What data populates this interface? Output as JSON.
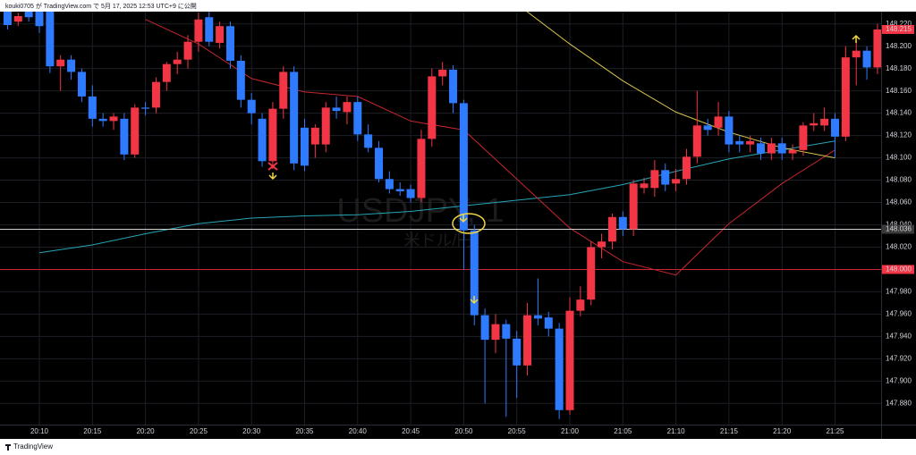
{
  "header": "kouki0705 が TradingView.com で 5月 17, 2025 12:53 UTC+9 に公開",
  "footer": "TradingView",
  "chart_data": {
    "type": "candlestick",
    "watermark": {
      "symbol": "USDJPY, 1",
      "name": "米ドル/円"
    },
    "up_color": "#f23645",
    "down_color": "#2f7bff",
    "grid": true,
    "ylim": [
      147.861,
      148.231
    ],
    "yticks": [
      {
        "value": 147.88,
        "label": "147.880"
      },
      {
        "value": 147.9,
        "label": "147.900"
      },
      {
        "value": 147.92,
        "label": "147.920"
      },
      {
        "value": 147.94,
        "label": "147.940"
      },
      {
        "value": 147.96,
        "label": "147.960"
      },
      {
        "value": 147.98,
        "label": "147.980"
      },
      {
        "value": 148.0,
        "label": "148.000"
      },
      {
        "value": 148.02,
        "label": "148.020"
      },
      {
        "value": 148.04,
        "label": "148.040"
      },
      {
        "value": 148.06,
        "label": "148.060"
      },
      {
        "value": 148.08,
        "label": "148.080"
      },
      {
        "value": 148.1,
        "label": "148.100"
      },
      {
        "value": 148.12,
        "label": "148.120"
      },
      {
        "value": 148.14,
        "label": "148.140"
      },
      {
        "value": 148.16,
        "label": "148.160"
      },
      {
        "value": 148.18,
        "label": "148.180"
      },
      {
        "value": 148.2,
        "label": "148.200"
      },
      {
        "value": 148.22,
        "label": "148.220"
      }
    ],
    "categories": [
      null,
      null,
      null,
      "20:10",
      null,
      null,
      null,
      null,
      "20:15",
      null,
      null,
      null,
      null,
      "20:20",
      null,
      null,
      null,
      null,
      "20:25",
      null,
      null,
      null,
      null,
      "20:30",
      null,
      null,
      null,
      null,
      "20:35",
      null,
      null,
      null,
      null,
      "20:40",
      null,
      null,
      null,
      null,
      "20:45",
      null,
      null,
      null,
      null,
      "20:50",
      null,
      null,
      null,
      null,
      "20:55",
      null,
      null,
      null,
      null,
      "21:00",
      null,
      null,
      null,
      null,
      "21:05",
      null,
      null,
      null,
      null,
      "21:10",
      null,
      null,
      null,
      null,
      "21:15",
      null,
      null,
      null,
      null,
      "21:20",
      null,
      null,
      null,
      null,
      "21:25",
      null,
      null,
      null,
      null
    ],
    "open": [
      148.24,
      148.222,
      148.24,
      148.238,
      148.234,
      148.182,
      148.188,
      148.177,
      148.155,
      148.135,
      148.133,
      148.135,
      148.103,
      148.145,
      148.145,
      148.168,
      148.184,
      148.188,
      148.204,
      148.226,
      148.203,
      148.218,
      148.187,
      148.152,
      148.135,
      148.097,
      148.144,
      148.177,
      148.127,
      148.112,
      148.112,
      148.145,
      148.141,
      148.15,
      148.121,
      148.109,
      148.081,
      148.072,
      148.072,
      148.064,
      148.117,
      148.173,
      148.179,
      148.149,
      148.035,
      147.959,
      147.937,
      147.951,
      147.938,
      147.914,
      147.959,
      147.957,
      147.947,
      147.874,
      147.963,
      147.973,
      148.02,
      148.025,
      148.047,
      148.036,
      148.073,
      148.073,
      148.089,
      148.077,
      148.081,
      148.101,
      148.129,
      148.127,
      148.137,
      148.115,
      148.112,
      148.113,
      148.104,
      148.113,
      148.104,
      148.107,
      148.129,
      148.129,
      148.135,
      148.119,
      148.19,
      148.196,
      148.181
    ],
    "high": [
      148.242,
      148.23,
      148.242,
      148.242,
      148.238,
      148.192,
      148.192,
      148.18,
      148.165,
      148.14,
      148.14,
      148.14,
      148.148,
      148.15,
      148.172,
      148.186,
      148.195,
      148.21,
      148.23,
      148.232,
      148.222,
      148.222,
      148.192,
      148.158,
      148.14,
      148.15,
      148.182,
      148.182,
      148.135,
      148.13,
      148.15,
      148.155,
      148.155,
      148.155,
      148.13,
      148.115,
      148.088,
      148.078,
      148.076,
      148.125,
      148.18,
      148.186,
      148.183,
      148.152,
      148.04,
      147.965,
      147.96,
      147.955,
      147.945,
      147.97,
      147.992,
      147.962,
      147.952,
      147.975,
      147.985,
      148.025,
      148.032,
      148.05,
      148.052,
      148.08,
      148.082,
      148.098,
      148.095,
      148.09,
      148.108,
      148.16,
      148.135,
      148.15,
      148.142,
      148.12,
      148.12,
      148.118,
      148.118,
      148.118,
      148.112,
      148.132,
      148.14,
      148.145,
      148.14,
      148.2,
      148.205,
      148.2,
      148.22
    ],
    "low": [
      148.215,
      148.218,
      148.222,
      148.212,
      148.176,
      148.16,
      148.17,
      148.15,
      148.128,
      148.128,
      148.125,
      148.098,
      148.1,
      148.138,
      148.14,
      148.16,
      148.175,
      148.18,
      148.195,
      148.2,
      148.198,
      148.18,
      148.145,
      148.13,
      148.092,
      148.09,
      148.135,
      148.089,
      148.088,
      148.1,
      148.105,
      148.135,
      148.13,
      148.115,
      148.105,
      148.078,
      148.068,
      148.066,
      148.06,
      148.06,
      148.11,
      148.165,
      148.14,
      148.0,
      147.95,
      147.88,
      147.925,
      147.868,
      147.885,
      147.905,
      147.95,
      147.94,
      147.866,
      147.87,
      147.958,
      147.968,
      148.01,
      148.018,
      148.03,
      148.03,
      148.068,
      148.065,
      148.07,
      148.07,
      148.076,
      148.095,
      148.12,
      148.12,
      148.105,
      148.105,
      148.105,
      148.098,
      148.098,
      148.098,
      148.098,
      148.102,
      148.124,
      148.124,
      148.1,
      148.115,
      148.165,
      148.17,
      148.175
    ],
    "close": [
      148.219,
      148.227,
      148.226,
      148.218,
      148.182,
      148.188,
      148.177,
      148.155,
      148.135,
      148.133,
      148.137,
      148.103,
      148.145,
      148.144,
      148.168,
      148.184,
      148.188,
      148.204,
      148.224,
      148.204,
      148.218,
      148.187,
      148.152,
      148.14,
      148.097,
      148.144,
      148.177,
      148.095,
      148.093,
      148.127,
      148.145,
      148.142,
      148.15,
      148.121,
      148.109,
      148.081,
      148.072,
      148.07,
      148.064,
      148.117,
      148.173,
      148.179,
      148.149,
      148.035,
      147.959,
      147.937,
      147.951,
      147.938,
      147.914,
      147.959,
      147.956,
      147.947,
      147.874,
      147.963,
      147.973,
      148.02,
      148.025,
      148.047,
      148.036,
      148.077,
      148.077,
      148.089,
      148.076,
      148.081,
      148.101,
      148.129,
      148.125,
      148.137,
      148.112,
      148.112,
      148.115,
      148.104,
      148.113,
      148.104,
      148.107,
      148.129,
      148.131,
      148.135,
      148.119,
      148.19,
      148.196,
      148.181,
      148.215
    ],
    "lines": [
      {
        "color": "#26a6b8",
        "x": [
          "20:10",
          "20:15",
          "20:20",
          "20:25",
          "20:30",
          "20:35",
          "20:40",
          "20:45",
          "20:50",
          "20:55",
          "21:00",
          "21:05",
          "21:10",
          "21:15",
          "21:20",
          "21:25"
        ],
        "values": [
          148.015,
          148.022,
          148.032,
          148.041,
          148.046,
          148.048,
          148.049,
          148.052,
          148.057,
          148.062,
          148.067,
          148.076,
          148.088,
          148.099,
          148.107,
          148.115
        ]
      },
      {
        "color": "#c8262e",
        "x": [
          "20:10",
          "20:15",
          "20:20",
          "20:25",
          "20:30",
          "20:35",
          "20:40",
          "20:45",
          "20:50",
          "20:55",
          "21:00",
          "21:05",
          "21:10",
          "21:15",
          "21:20",
          "21:25"
        ],
        "values": [
          null,
          null,
          148.224,
          148.202,
          148.171,
          148.159,
          148.155,
          148.133,
          148.125,
          148.081,
          148.037,
          148.007,
          147.995,
          148.041,
          148.077,
          148.107
        ]
      },
      {
        "color": "#d8c34a",
        "x": [
          "20:10",
          "20:15",
          "20:20",
          "20:25",
          "20:30",
          "20:35",
          "20:40",
          "20:45",
          "20:50",
          "20:55",
          "21:00",
          "21:05",
          "21:10",
          "21:15",
          "21:20",
          "21:25"
        ],
        "values": [
          null,
          null,
          null,
          null,
          null,
          null,
          null,
          null,
          null,
          148.238,
          148.202,
          148.169,
          148.141,
          148.123,
          148.109,
          148.1
        ]
      }
    ],
    "price_lines": [
      {
        "value": 148.036,
        "label": "148.036",
        "color": "#cfcfcf",
        "box": "#3a3a3a"
      },
      {
        "value": 148.0,
        "label": "148.000",
        "color": "#c8262e",
        "box": "#f23645"
      }
    ],
    "last_price": {
      "value": 148.215,
      "label": "148.215",
      "box": "#f23645"
    }
  }
}
